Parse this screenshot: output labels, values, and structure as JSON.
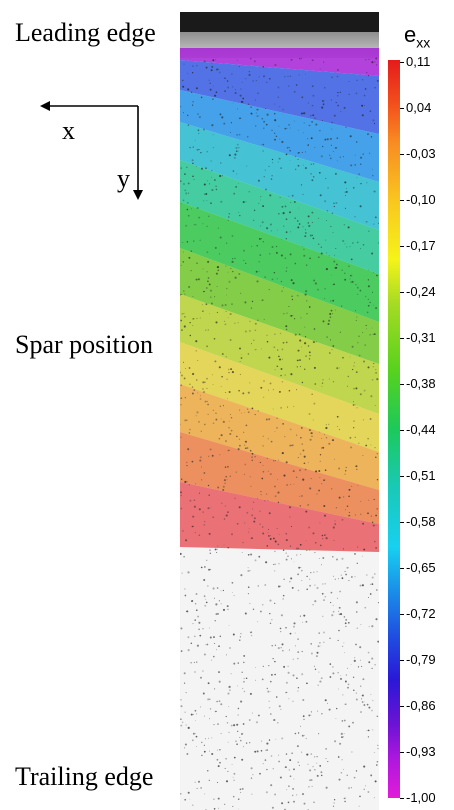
{
  "labels": {
    "leading_edge": "Leading edge",
    "spar_position": "Spar position",
    "trailing_edge": "Trailing edge"
  },
  "axes": {
    "x": "x",
    "y": "y"
  },
  "colorbar": {
    "title_main": "e",
    "title_sub": "xx",
    "ticks": [
      "0,11",
      "0,04",
      "-0,03",
      "-0,10",
      "-0,17",
      "-0,24",
      "-0,31",
      "-0,38",
      "-0,44",
      "-0,51",
      "-0,58",
      "-0,65",
      "-0,72",
      "-0,79",
      "-0,86",
      "-0,93",
      "-1,00"
    ]
  },
  "colors": {
    "band_colors": [
      "#a31bd6",
      "#2e55e2",
      "#1e8fe6",
      "#1fb7cc",
      "#1fc58f",
      "#26c23f",
      "#6ac523",
      "#b5cf2a",
      "#e0cf38",
      "#eba63b",
      "#ea7a3e",
      "#e8545a"
    ]
  }
}
